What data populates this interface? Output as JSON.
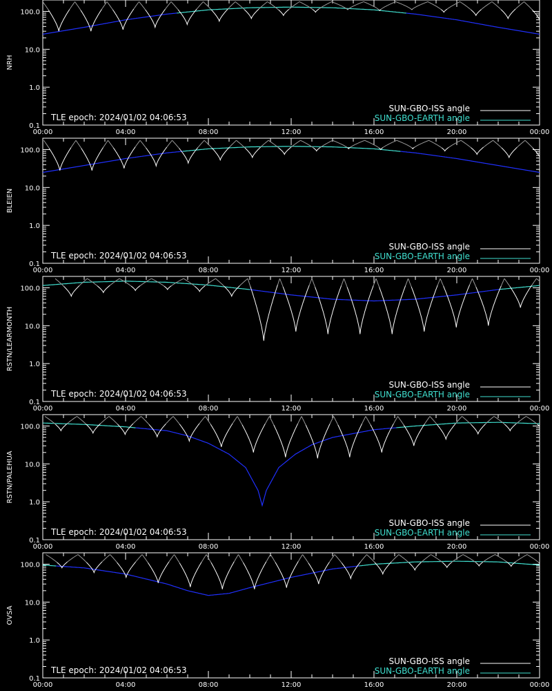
{
  "page": {
    "background": "#000000"
  },
  "colors": {
    "iss_lit": "#ffffff",
    "iss_dim": "#9a9a9a",
    "earth_lit": "#40e0d0",
    "earth_dim": "#2030ff",
    "axis": "#ffffff"
  },
  "legend": {
    "iss_label": "SUN-GBO-ISS angle",
    "earth_label": "SUN-GBO-EARTH angle"
  },
  "epoch_text": "TLE epoch: 2024/01/02 04:06:53",
  "chart_data": [
    {
      "type": "line",
      "ylabel": "NRH",
      "yscale": "log",
      "ylim": [
        0.1,
        200
      ],
      "ytick_labels": [
        "0.1",
        "1.0",
        "10.0",
        "100.0"
      ],
      "xlim": [
        0,
        24
      ],
      "xtick_labels": [
        "00:00",
        "04:00",
        "08:00",
        "12:00",
        "16:00",
        "20:00",
        "00:00"
      ],
      "series": [
        {
          "name": "SUN-GBO-EARTH angle",
          "x": [
            0,
            2,
            4,
            6,
            8,
            10,
            12,
            14,
            16,
            18,
            20,
            22,
            24
          ],
          "y": [
            25,
            38,
            60,
            85,
            110,
            125,
            130,
            125,
            110,
            85,
            60,
            38,
            25
          ]
        },
        {
          "name": "SUN-GBO-ISS angle",
          "orbits": {
            "t0": 0.0,
            "period": 1.55,
            "min_y": [
              30,
              30,
              33,
              38,
              45,
              55,
              65,
              78,
              95,
              110,
              105,
              110,
              95,
              78,
              65,
              55,
              45,
              38,
              33,
              30
            ],
            "peak_y": 180
          }
        }
      ],
      "visible_threshold": 90
    },
    {
      "type": "line",
      "ylabel": "BLEIEN",
      "yscale": "log",
      "ylim": [
        0.1,
        200
      ],
      "ytick_labels": [
        "0.1",
        "1.0",
        "10.0",
        "100.0"
      ],
      "xlim": [
        0,
        24
      ],
      "xtick_labels": [
        "00:00",
        "04:00",
        "08:00",
        "12:00",
        "16:00",
        "20:00",
        "00:00"
      ],
      "series": [
        {
          "name": "SUN-GBO-EARTH angle",
          "x": [
            0,
            2,
            4,
            6,
            8,
            10,
            12,
            14,
            16,
            18,
            20,
            22,
            24
          ],
          "y": [
            25,
            38,
            58,
            82,
            105,
            118,
            122,
            118,
            105,
            82,
            58,
            38,
            25
          ]
        },
        {
          "name": "SUN-GBO-ISS angle",
          "orbits": {
            "t0": 0.05,
            "period": 1.55,
            "min_y": [
              28,
              28,
              32,
              37,
              44,
              53,
              62,
              75,
              92,
              105,
              100,
              105,
              92,
              75,
              62,
              53,
              44,
              37,
              32,
              28
            ],
            "peak_y": 175
          }
        }
      ],
      "visible_threshold": 90
    },
    {
      "type": "line",
      "ylabel": "RSTN/LEARMONTH",
      "yscale": "log",
      "ylim": [
        0.1,
        200
      ],
      "ytick_labels": [
        "0.1",
        "1.0",
        "10.0",
        "100.0"
      ],
      "xlim": [
        0,
        24
      ],
      "xtick_labels": [
        "00:00",
        "04:00",
        "08:00",
        "12:00",
        "16:00",
        "20:00",
        "00:00"
      ],
      "series": [
        {
          "name": "SUN-GBO-EARTH angle",
          "x": [
            0,
            2,
            4,
            6,
            8,
            10,
            12,
            14,
            16,
            18,
            20,
            22,
            24
          ],
          "y": [
            115,
            140,
            150,
            140,
            118,
            90,
            65,
            50,
            45,
            50,
            65,
            90,
            115
          ]
        },
        {
          "name": "SUN-GBO-ISS angle",
          "orbits": {
            "t0": 0.6,
            "period": 1.55,
            "min_y": [
              60,
              75,
              85,
              90,
              80,
              60,
              4,
              7,
              6,
              6,
              6,
              7,
              9,
              10,
              30,
              60,
              80
            ],
            "peak_y": 175
          }
        }
      ],
      "visible_threshold": 90
    },
    {
      "type": "line",
      "ylabel": "RSTN/PALEHUA",
      "yscale": "log",
      "ylim": [
        0.1,
        200
      ],
      "ytick_labels": [
        "0.1",
        "1.0",
        "10.0",
        "100.0"
      ],
      "xlim": [
        0,
        24
      ],
      "xtick_labels": [
        "00:00",
        "04:00",
        "08:00",
        "12:00",
        "16:00",
        "20:00",
        "00:00"
      ],
      "series": [
        {
          "name": "SUN-GBO-EARTH angle",
          "x": [
            0,
            2,
            4,
            6,
            7,
            8,
            9,
            9.8,
            10.4,
            10.6,
            10.8,
            11.4,
            12.2,
            13,
            14,
            16,
            18,
            20,
            22,
            24
          ],
          "y": [
            120,
            110,
            95,
            75,
            55,
            35,
            18,
            8,
            2,
            0.8,
            2,
            8,
            18,
            32,
            50,
            80,
            100,
            120,
            125,
            115
          ]
        },
        {
          "name": "SUN-GBO-ISS angle",
          "orbits": {
            "t0": 0.1,
            "period": 1.55,
            "min_y": [
              75,
              65,
              60,
              52,
              40,
              28,
              20,
              15,
              14,
              15,
              20,
              30,
              45,
              62,
              75,
              80,
              80,
              78
            ],
            "peak_y": 180
          }
        }
      ],
      "visible_threshold": 90
    },
    {
      "type": "line",
      "ylabel": "OVSA",
      "yscale": "log",
      "ylim": [
        0.1,
        200
      ],
      "ytick_labels": [
        "0.1",
        "1.0",
        "10.0",
        "100.0"
      ],
      "xlim": [
        0,
        24
      ],
      "xtick_labels": [
        "00:00",
        "04:00",
        "08:00",
        "12:00",
        "16:00",
        "20:00",
        "00:00"
      ],
      "series": [
        {
          "name": "SUN-GBO-EARTH angle",
          "x": [
            0,
            2,
            4,
            6,
            7,
            8,
            9,
            10,
            12,
            14,
            16,
            18,
            20,
            22,
            24
          ],
          "y": [
            95,
            80,
            55,
            30,
            20,
            15,
            17,
            24,
            45,
            75,
            100,
            115,
            120,
            115,
            95
          ]
        },
        {
          "name": "SUN-GBO-ISS angle",
          "orbits": {
            "t0": 0.15,
            "period": 1.55,
            "min_y": [
              80,
              60,
              45,
              32,
              25,
              22,
              22,
              24,
              30,
              42,
              55,
              70,
              82,
              90,
              88,
              82
            ],
            "peak_y": 180
          }
        }
      ],
      "visible_threshold": 90
    }
  ]
}
